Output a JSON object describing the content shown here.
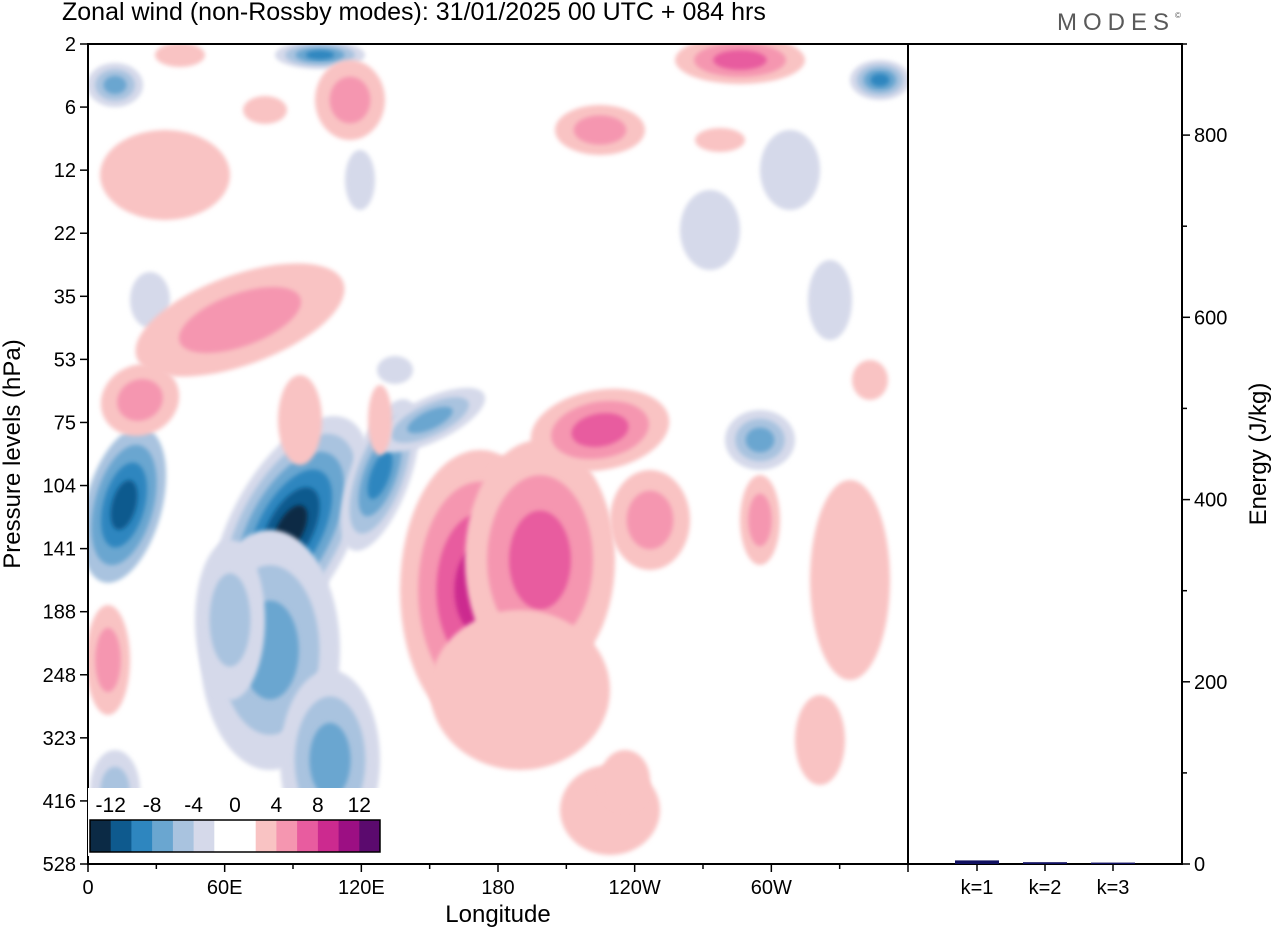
{
  "title": "Zonal wind (non-Rossby modes):  31/01/2025  00 UTC  + 084 hrs",
  "brand": "MODES",
  "brand_mark": "©",
  "chart_data": [
    {
      "type": "heatmap",
      "xlabel": "Longitude",
      "ylabel": "Pressure levels (hPa)",
      "x_ticks": [
        "0",
        "60E",
        "120E",
        "180",
        "120W",
        "60W"
      ],
      "y_ticks": [
        "2",
        "6",
        "12",
        "22",
        "35",
        "53",
        "75",
        "104",
        "141",
        "188",
        "248",
        "323",
        "416",
        "528"
      ],
      "colorbar": {
        "labels": [
          "-12",
          "-8",
          "-4",
          "0",
          "4",
          "8",
          "12"
        ],
        "levels": [
          -14,
          -12,
          -10,
          -8,
          -6,
          -4,
          -2,
          2,
          4,
          6,
          8,
          10,
          12,
          14
        ],
        "colors": [
          "#0b2a45",
          "#0e5a8e",
          "#2e86bf",
          "#6aa6d0",
          "#a9c3df",
          "#d5d9ea",
          "#ffffff",
          "#ffffff",
          "#f9c3c3",
          "#f596b0",
          "#e85c9f",
          "#cc2a8f",
          "#9c0f83",
          "#5b0a6e"
        ]
      }
    },
    {
      "type": "bar",
      "ylabel": "Energy (J/kg)",
      "categories": [
        "k=1",
        "k=2",
        "k=3"
      ],
      "values": [
        4,
        2,
        1.5
      ],
      "ylim": [
        0,
        900
      ],
      "y_ticks": [
        0,
        200,
        400,
        600,
        800
      ],
      "color": "#101060"
    }
  ]
}
